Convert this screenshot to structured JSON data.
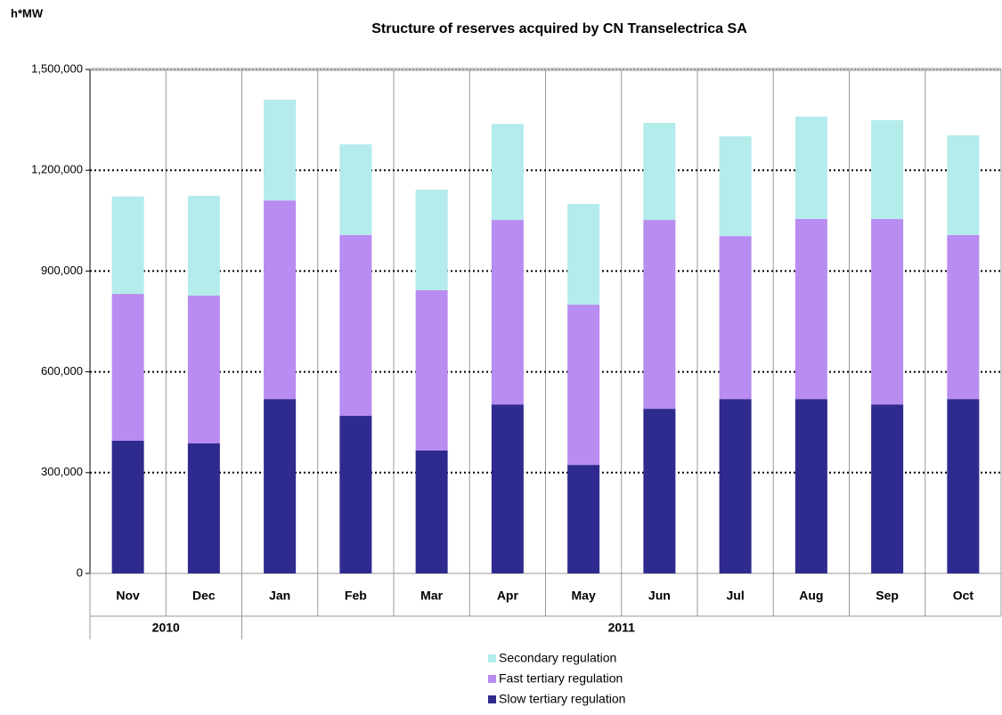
{
  "chart_data": {
    "type": "stacked_bar",
    "title": "Structure of reserves acquired by CN Transelectrica SA",
    "y_axis_label": "h*MW",
    "categories": [
      "Nov",
      "Dec",
      "Jan",
      "Feb",
      "Mar",
      "Apr",
      "May",
      "Jun",
      "Jul",
      "Aug",
      "Sep",
      "Oct"
    ],
    "category_groups": [
      {
        "label": "2010",
        "span": 2
      },
      {
        "label": "2011",
        "span": 10
      }
    ],
    "series": [
      {
        "name": "Slow tertiary regulation",
        "color": "#2f2a8e",
        "values": [
          395000,
          387000,
          519000,
          469000,
          366000,
          503000,
          323000,
          490000,
          519000,
          519000,
          503000,
          519000
        ]
      },
      {
        "name": "Fast tertiary regulation",
        "color": "#b88cf0",
        "values": [
          437000,
          440000,
          591000,
          538000,
          477000,
          549000,
          477000,
          562000,
          485000,
          536000,
          552000,
          488000
        ]
      },
      {
        "name": "Secondary regulation",
        "color": "#b4ebeb",
        "values": [
          290000,
          297000,
          300000,
          270000,
          299000,
          286000,
          300000,
          289000,
          297000,
          305000,
          294000,
          297000
        ]
      }
    ],
    "ylim": [
      0,
      1500000
    ],
    "yticks": [
      0,
      {
        "value": 300000,
        "label": "300,000"
      },
      {
        "value": 600000,
        "label": "600,000"
      },
      {
        "value": 900000,
        "label": "900,000"
      },
      {
        "value": 1200000,
        "label": "1,200,000"
      },
      {
        "value": 1500000,
        "label": "1,500,000"
      }
    ],
    "grid": true,
    "legend": "bottom"
  }
}
